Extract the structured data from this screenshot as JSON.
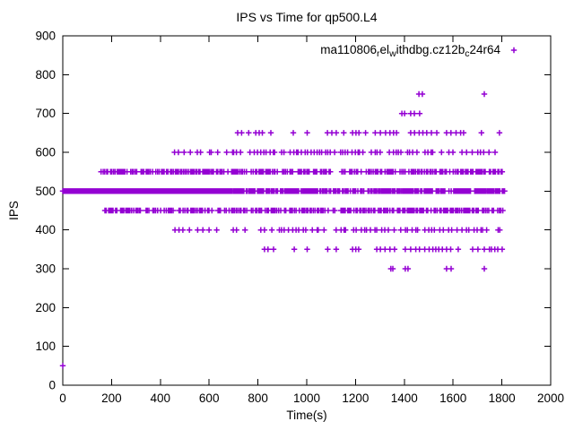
{
  "window": {
    "background": "#ffffff",
    "axis_color": "#000000",
    "text_color": "#000000"
  },
  "chart_data": {
    "type": "scatter",
    "title": "IPS vs Time for qp500.L4",
    "xlabel": "Time(s)",
    "ylabel": "IPS",
    "xlim": [
      0,
      2000
    ],
    "ylim": [
      0,
      900
    ],
    "xticks": [
      0,
      200,
      400,
      600,
      800,
      1000,
      1200,
      1400,
      1600,
      1800,
      2000
    ],
    "yticks": [
      0,
      100,
      200,
      300,
      400,
      500,
      600,
      700,
      800,
      900
    ],
    "grid": false,
    "marker": {
      "shape": "plus",
      "color": "#9400d3",
      "size": 7
    },
    "legend": {
      "position": "top-right-inside",
      "entries": [
        {
          "label_parts": [
            {
              "text": "ma110806"
            },
            {
              "text": "r",
              "subscript": true
            },
            {
              "text": "el"
            },
            {
              "text": "w",
              "subscript": true
            },
            {
              "text": "ithdbg.cz12b"
            },
            {
              "text": "c",
              "subscript": true
            },
            {
              "text": "24r64"
            }
          ],
          "marker": "plus",
          "marker_color": "#9400d3"
        }
      ]
    },
    "series": [
      {
        "marker": "plus",
        "color": "#9400d3",
        "note": "Points cluster on discrete IPS levels; dense overplotted runs are encoded as segments {from,to,step} in seconds, sparse levels as explicit times.",
        "bands": [
          {
            "ips": 500,
            "segments": [
              {
                "from": 0,
                "to": 682,
                "step": 3,
                "skip": 0.04
              },
              {
                "from": 684,
                "to": 1806,
                "step": 4.5,
                "skip": 0.15
              }
            ]
          },
          {
            "ips": 550,
            "segments": [
              {
                "from": 158,
                "to": 1803,
                "step": 7,
                "skip": 0.16
              }
            ]
          },
          {
            "ips": 450,
            "segments": [
              {
                "from": 165,
                "to": 1808,
                "step": 7,
                "skip": 0.16
              }
            ]
          },
          {
            "ips": 600,
            "segments": [
              {
                "from": 449,
                "to": 700,
                "step": 24,
                "skip": 0.1
              },
              {
                "from": 702,
                "to": 1786,
                "step": 12,
                "skip": 0.26
              }
            ]
          },
          {
            "ips": 400,
            "segments": [
              {
                "from": 450,
                "to": 648,
                "step": 25,
                "skip": 0.15
              },
              {
                "from": 700,
                "to": 1808,
                "step": 14,
                "skip": 0.26
              }
            ]
          },
          {
            "ips": 650,
            "times": [
              717,
              733,
              762,
              791,
              805,
              818,
              853,
              945,
              1002,
              1085,
              1103,
              1121,
              1152,
              1188,
              1202,
              1214,
              1241,
              1281,
              1302,
              1323,
              1341,
              1356,
              1368,
              1426,
              1442,
              1461,
              1476,
              1492,
              1511,
              1533,
              1573,
              1591,
              1612,
              1631,
              1643,
              1716,
              1790
            ]
          },
          {
            "ips": 350,
            "times": [
              827,
              841,
              864,
              949,
              1002,
              1086,
              1121,
              1188,
              1201,
              1213,
              1287,
              1302,
              1321,
              1341,
              1360,
              1404,
              1426,
              1447,
              1462,
              1484,
              1502,
              1517,
              1529,
              1541,
              1556,
              1573,
              1590,
              1621,
              1680,
              1702,
              1728,
              1749,
              1757,
              1771,
              1783,
              1801
            ]
          },
          {
            "ips": 300,
            "times": [
              1345,
              1353,
              1404,
              1415,
              1573,
              1592,
              1728
            ]
          },
          {
            "ips": 700,
            "times": [
              1390,
              1401,
              1426,
              1441,
              1463
            ]
          },
          {
            "ips": 750,
            "times": [
              1460,
              1474,
              1728
            ]
          },
          {
            "ips": 50,
            "times": [
              0
            ]
          }
        ]
      }
    ]
  }
}
